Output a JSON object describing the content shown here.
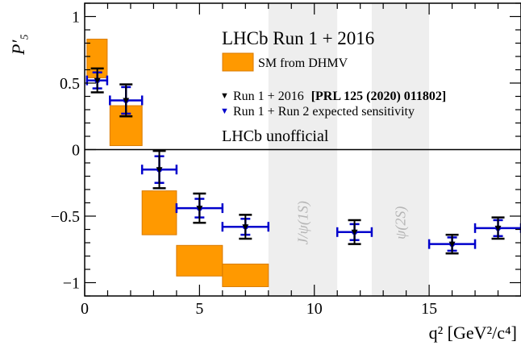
{
  "chart_data": {
    "type": "scatter",
    "title": "LHCb Run 1 + 2016",
    "annotation": "LHCb unofficial",
    "xlabel": "q² [GeV²/c⁴]",
    "ylabel": "P′₅",
    "xlim": [
      0,
      19
    ],
    "ylim": [
      -1.1,
      1.1
    ],
    "xticks": [
      0,
      5,
      10,
      15
    ],
    "yticks": [
      -1,
      -0.5,
      0,
      0.5,
      1
    ],
    "ytick_labels": [
      "−1",
      "−0.5",
      "0",
      "0.5",
      "1"
    ],
    "grid": false,
    "legend_position": "top-right",
    "colors": {
      "sm": "#ff9900",
      "sm_edge": "#d97a00",
      "run2016": "#000000",
      "expected": "#0000cc",
      "veto": "#eeeeee",
      "veto_text": "#b5b5b5"
    },
    "vetoed_regions": [
      {
        "label": "J/ψ(1S)",
        "x": [
          8,
          11
        ]
      },
      {
        "label": "ψ(2S)",
        "x": [
          12.5,
          15
        ]
      }
    ],
    "series": [
      {
        "name": "SM from DHMV",
        "kind": "band",
        "bins": [
          {
            "x": [
              0.1,
              0.98
            ],
            "y": [
              0.54,
              0.83
            ]
          },
          {
            "x": [
              1.1,
              2.5
            ],
            "y": [
              0.03,
              0.33
            ]
          },
          {
            "x": [
              2.5,
              4.0
            ],
            "y": [
              -0.64,
              -0.31
            ]
          },
          {
            "x": [
              4.0,
              6.0
            ],
            "y": [
              -0.95,
              -0.72
            ]
          },
          {
            "x": [
              6.0,
              8.0
            ],
            "y": [
              -1.03,
              -0.86
            ]
          }
        ]
      },
      {
        "name": "Run 1 + 2016",
        "name_ref": "[PRL 125 (2020) 011802]",
        "kind": "points",
        "marker": "▼",
        "points": [
          {
            "x": 0.55,
            "y": 0.52,
            "err": 0.09
          },
          {
            "x": 1.8,
            "y": 0.37,
            "err": 0.12
          },
          {
            "x": 3.25,
            "y": -0.15,
            "err": 0.14
          },
          {
            "x": 5.0,
            "y": -0.44,
            "err": 0.11
          },
          {
            "x": 7.0,
            "y": -0.58,
            "err": 0.09
          },
          {
            "x": 11.75,
            "y": -0.62,
            "err": 0.09
          },
          {
            "x": 16.0,
            "y": -0.71,
            "err": 0.07
          },
          {
            "x": 18.0,
            "y": -0.59,
            "err": 0.08
          }
        ]
      },
      {
        "name": "Run 1 + Run 2 expected sensitivity",
        "kind": "points",
        "marker": "▼",
        "points": [
          {
            "x": 0.55,
            "y": 0.52,
            "xerr": [
              0.45,
              0.43
            ],
            "err": 0.06
          },
          {
            "x": 1.8,
            "y": 0.37,
            "xerr": [
              0.7,
              0.7
            ],
            "err": 0.1
          },
          {
            "x": 3.25,
            "y": -0.15,
            "xerr": [
              0.75,
              0.75
            ],
            "err": 0.1
          },
          {
            "x": 5.0,
            "y": -0.44,
            "xerr": [
              1.0,
              1.0
            ],
            "err": 0.07
          },
          {
            "x": 7.0,
            "y": -0.58,
            "xerr": [
              1.0,
              1.0
            ],
            "err": 0.06
          },
          {
            "x": 11.75,
            "y": -0.62,
            "xerr": [
              0.75,
              0.75
            ],
            "err": 0.06
          },
          {
            "x": 16.0,
            "y": -0.71,
            "xerr": [
              1.0,
              1.0
            ],
            "err": 0.05
          },
          {
            "x": 18.0,
            "y": -0.59,
            "xerr": [
              1.0,
              1.0
            ],
            "err": 0.06
          }
        ]
      }
    ]
  }
}
